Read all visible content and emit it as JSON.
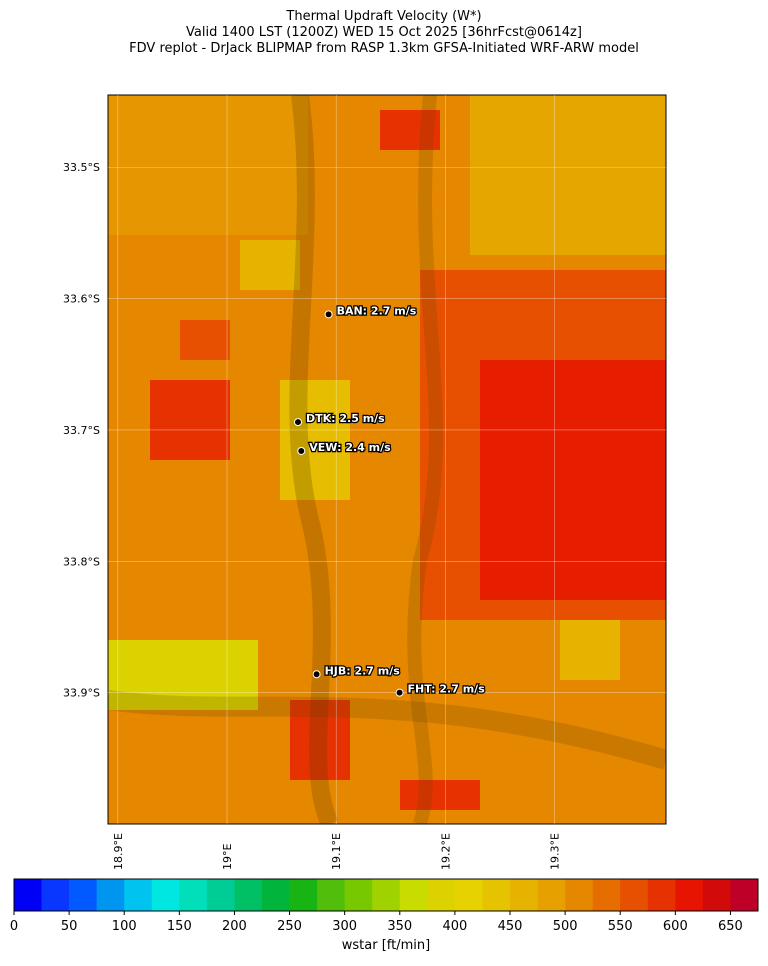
{
  "title": [
    "Thermal Updraft Velocity (W*)",
    "Valid 1400 LST (1200Z) WED 15 Oct 2025 [36hrFcst@0614z]",
    "FDV replot - DrJack BLIPMAP from RASP 1.3km GFSA-Initiated WRF-ARW model"
  ],
  "map": {
    "lat_lim": [
      -33.445,
      -34.0
    ],
    "lon_lim": [
      18.891,
      19.402
    ],
    "lat_ticks": [
      {
        "value": -33.5,
        "label": "33.5°S"
      },
      {
        "value": -33.6,
        "label": "33.6°S"
      },
      {
        "value": -33.7,
        "label": "33.7°S"
      },
      {
        "value": -33.8,
        "label": "33.8°S"
      },
      {
        "value": -33.9,
        "label": "33.9°S"
      }
    ],
    "lon_ticks": [
      {
        "value": 18.9,
        "label": "18.9°E"
      },
      {
        "value": 19.0,
        "label": "19°E"
      },
      {
        "value": 19.1,
        "label": "19.1°E"
      },
      {
        "value": 19.2,
        "label": "19.2°E"
      },
      {
        "value": 19.3,
        "label": "19.3°E"
      }
    ],
    "stations": [
      {
        "label": "BAN: 2.7 m/s",
        "lon": 19.093,
        "lat": -33.612
      },
      {
        "label": "DTK: 2.5 m/s",
        "lon": 19.065,
        "lat": -33.694
      },
      {
        "label": "VEW: 2.4 m/s",
        "lon": 19.068,
        "lat": -33.716
      },
      {
        "label": "HJB: 2.7 m/s",
        "lon": 19.082,
        "lat": -33.886
      },
      {
        "label": "FHT: 2.7 m/s",
        "lon": 19.158,
        "lat": -33.9
      }
    ]
  },
  "colorbar": {
    "label": "wstar [ft/min]",
    "lim": [
      0,
      675
    ],
    "ticks": [
      0,
      50,
      100,
      150,
      200,
      250,
      300,
      350,
      400,
      450,
      500,
      550,
      600,
      650
    ],
    "colors": [
      "#0000f6",
      "#0a37ff",
      "#005aff",
      "#0096f0",
      "#00c3f0",
      "#00e6e0",
      "#00deba",
      "#00cc96",
      "#00c066",
      "#00b43c",
      "#18b414",
      "#50be0a",
      "#78c800",
      "#a0d200",
      "#c8dc00",
      "#dcd200",
      "#e6d200",
      "#e6c300",
      "#e6b400",
      "#e6a000",
      "#e68700",
      "#e66e00",
      "#e65000",
      "#e63200",
      "#e61400",
      "#d20a0a",
      "#be0028"
    ]
  }
}
